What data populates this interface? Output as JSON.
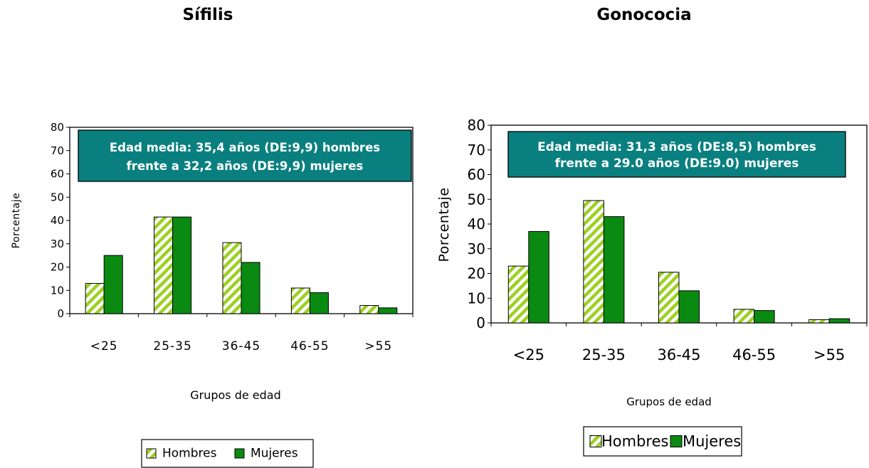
{
  "headings": {
    "left": "Sífilis",
    "right": "Gonococia"
  },
  "colors": {
    "mujeres": "#0b8a12",
    "hombres_stripe": "#9cd020",
    "annotation_bg": "#0a7f7f",
    "annotation_text": "#ffffff"
  },
  "chart_data": [
    {
      "type": "bar",
      "title": "Sífilis",
      "categories": [
        "<25",
        "25-35",
        "36-45",
        "46-55",
        ">55"
      ],
      "series": [
        {
          "name": "Hombres",
          "values": [
            13,
            41.5,
            30.5,
            11,
            3.5
          ]
        },
        {
          "name": "Mujeres",
          "values": [
            25,
            41.5,
            22,
            9,
            2.5
          ]
        }
      ],
      "xlabel": "Grupos de edad",
      "ylabel": "Porcentaje",
      "ylim": [
        0,
        80
      ],
      "yticks": [
        0,
        10,
        20,
        30,
        40,
        50,
        60,
        70,
        80
      ],
      "annotation": [
        "Edad media: 35,4 años (DE:9,9) hombres",
        "frente a 32,2 años (DE:9,9) mujeres"
      ],
      "legend": [
        "Hombres",
        "Mujeres"
      ],
      "legend_position": "bottom",
      "grid": false
    },
    {
      "type": "bar",
      "title": "Gonococia",
      "categories": [
        "<25",
        "25-35",
        "36-45",
        "46-55",
        ">55"
      ],
      "series": [
        {
          "name": "Hombres",
          "values": [
            23,
            49.5,
            20.5,
            5.5,
            1.3
          ]
        },
        {
          "name": "Mujeres",
          "values": [
            37,
            43,
            13,
            5,
            1.7
          ]
        }
      ],
      "xlabel": "Grupos de edad",
      "ylabel": "Porcentaje",
      "ylim": [
        0,
        80
      ],
      "yticks": [
        0,
        10,
        20,
        30,
        40,
        50,
        60,
        70,
        80
      ],
      "annotation": [
        "Edad media: 31,3 años (DE:8,5) hombres",
        "frente a 29.0 años (DE:9.0) mujeres"
      ],
      "legend": [
        "Hombres",
        "Mujeres"
      ],
      "legend_position": "bottom",
      "grid": false
    }
  ]
}
